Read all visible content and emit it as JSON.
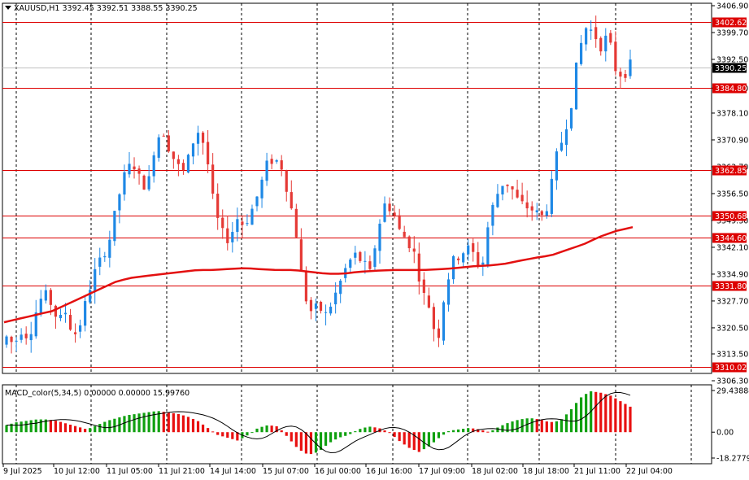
{
  "symbol_info": {
    "label": "XAUUSD,H1  3392.45 3392.51 3388.55 3390.25"
  },
  "macd_info": {
    "label": "MACD_color(5,34,5) 0.00000 0.00000 15.99760"
  },
  "price_axis": {
    "ticks": [
      "3406.90",
      "3399.70",
      "3392.50",
      "3384.80",
      "3378.10",
      "3370.90",
      "3363.70",
      "3356.50",
      "3349.30",
      "3342.10",
      "3334.90",
      "3327.70",
      "3320.50",
      "3313.50",
      "3306.30"
    ]
  },
  "macd_axis": {
    "ticks": [
      "29.43884",
      "0.00",
      "-18.27793"
    ]
  },
  "time_axis": {
    "labels": [
      "9 Jul 2025",
      "10 Jul 12:00",
      "11 Jul 05:00",
      "11 Jul 21:00",
      "14 Jul 14:00",
      "15 Jul 07:00",
      "16 Jul 00:00",
      "16 Jul 16:00",
      "17 Jul 09:00",
      "18 Jul 02:00",
      "18 Jul 18:00",
      "21 Jul 11:00",
      "22 Jul 04:00"
    ]
  },
  "horizontal_levels": [
    {
      "price": 3402.62,
      "label": "3402.62"
    },
    {
      "price": 3384.8,
      "label": "3384.80"
    },
    {
      "price": 3362.85,
      "label": "3362.85"
    },
    {
      "price": 3350.68,
      "label": "3350.68"
    },
    {
      "price": 3344.6,
      "label": "3344.60"
    },
    {
      "price": 3331.8,
      "label": "3331.80"
    },
    {
      "price": 3310.02,
      "label": "3310.02"
    }
  ],
  "current_price": {
    "price": 3390.25,
    "label": "3390.25"
  },
  "colors": {
    "bull": "#1e88e5",
    "bear": "#e53935",
    "level": "#dd0000",
    "ma": "#e31010",
    "macd_up": "#10a010",
    "macd_down": "#e81010"
  },
  "chart_data": {
    "type": "line",
    "title": "",
    "price_range": [
      3306.3,
      3406.9
    ],
    "macd_range": [
      -18.27793,
      29.43884
    ],
    "price_path": [
      3318,
      3316,
      3320,
      3318,
      3325,
      3330,
      3327,
      3322,
      3325,
      3318,
      3322,
      3330,
      3336,
      3340,
      3345,
      3355,
      3362,
      3365,
      3360,
      3358,
      3370,
      3374,
      3368,
      3364,
      3362,
      3370,
      3374,
      3366,
      3352,
      3346,
      3344,
      3350,
      3348,
      3352,
      3357,
      3364,
      3366,
      3364,
      3356,
      3346,
      3330,
      3325,
      3326,
      3324,
      3328,
      3333,
      3338,
      3340,
      3338,
      3335,
      3347,
      3354,
      3352,
      3346,
      3344,
      3340,
      3330,
      3326,
      3316,
      3330,
      3338,
      3340,
      3342,
      3340,
      3336,
      3350,
      3356,
      3360,
      3358,
      3354,
      3353,
      3352,
      3350,
      3354,
      3366,
      3372,
      3380,
      3394,
      3401,
      3400,
      3396,
      3399,
      3390,
      3388,
      3391
    ],
    "ma_path": [
      3322,
      3323,
      3324,
      3325,
      3327,
      3329,
      3331,
      3333,
      3334,
      3334.5,
      3335,
      3335.5,
      3336,
      3336,
      3336.3,
      3336.5,
      3336.2,
      3336,
      3336,
      3335.5,
      3335,
      3335,
      3335.5,
      3335.8,
      3336,
      3336,
      3336,
      3336.2,
      3336.5,
      3337,
      3337.2,
      3337.6,
      3338.5,
      3339.3,
      3340,
      3341.5,
      3343,
      3345,
      3346.5,
      3347.5
    ],
    "macd_path": [
      5,
      7,
      8,
      9,
      9,
      8,
      6,
      4,
      2,
      5,
      8,
      10,
      12,
      13,
      14,
      15,
      14,
      13,
      11,
      8,
      3,
      -2,
      -4,
      -6,
      -2,
      3,
      5,
      4,
      -4,
      -12,
      -16,
      -14,
      -8,
      -4,
      -2,
      2,
      4,
      3,
      0,
      -6,
      -11,
      -14,
      -10,
      -4,
      1,
      2,
      3,
      2,
      0,
      4,
      7,
      9,
      10,
      9,
      7,
      8,
      15,
      24,
      29,
      28,
      26,
      22,
      18
    ]
  }
}
